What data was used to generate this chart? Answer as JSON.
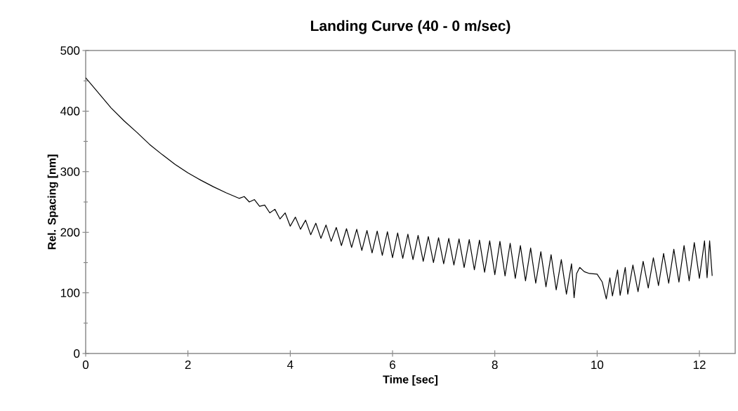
{
  "chart_data": {
    "type": "line",
    "title": "Landing Curve (40 - 0 m/sec)",
    "xlabel": "Time [sec]",
    "ylabel": "Rel. Spacing [nm]",
    "xlim": [
      0,
      12.7
    ],
    "ylim": [
      0,
      500
    ],
    "xticks": [
      0,
      2,
      4,
      6,
      8,
      10,
      12
    ],
    "yticks": [
      0,
      100,
      200,
      300,
      400,
      500
    ],
    "grid": false,
    "marker": "none",
    "line_style": "solid",
    "series": [
      {
        "color": "#000000",
        "x": [
          0,
          0.25,
          0.5,
          0.75,
          1,
          1.25,
          1.5,
          1.75,
          2,
          2.25,
          2.5,
          2.75,
          3,
          3.1,
          3.2,
          3.3,
          3.4,
          3.5,
          3.6,
          3.7,
          3.8,
          3.9,
          4.0,
          4.1,
          4.2,
          4.3,
          4.4,
          4.5,
          4.6,
          4.7,
          4.8,
          4.9,
          5.0,
          5.1,
          5.2,
          5.3,
          5.4,
          5.5,
          5.6,
          5.7,
          5.8,
          5.9,
          6.0,
          6.1,
          6.2,
          6.3,
          6.4,
          6.5,
          6.6,
          6.7,
          6.8,
          6.9,
          7.0,
          7.1,
          7.2,
          7.3,
          7.4,
          7.5,
          7.6,
          7.7,
          7.8,
          7.9,
          8.0,
          8.1,
          8.2,
          8.3,
          8.4,
          8.5,
          8.6,
          8.7,
          8.8,
          8.9,
          9.0,
          9.1,
          9.2,
          9.3,
          9.4,
          9.5,
          9.55,
          9.6,
          9.66,
          9.75,
          9.85,
          10.0,
          10.1,
          10.18,
          10.25,
          10.3,
          10.4,
          10.45,
          10.55,
          10.6,
          10.7,
          10.8,
          10.9,
          11.0,
          11.1,
          11.2,
          11.3,
          11.4,
          11.5,
          11.6,
          11.7,
          11.8,
          11.9,
          12.0,
          12.1,
          12.15,
          12.2,
          12.25
        ],
        "values": [
          455,
          430,
          405,
          384,
          365,
          345,
          328,
          312,
          298,
          286,
          275,
          265,
          256,
          259,
          250,
          254,
          243,
          245,
          232,
          238,
          222,
          232,
          210,
          225,
          205,
          220,
          196,
          215,
          190,
          212,
          185,
          208,
          178,
          206,
          175,
          205,
          170,
          203,
          166,
          202,
          162,
          201,
          158,
          199,
          157,
          197,
          155,
          195,
          152,
          193,
          150,
          191,
          148,
          190,
          146,
          189,
          142,
          188,
          138,
          187,
          134,
          186,
          130,
          185,
          128,
          182,
          124,
          178,
          120,
          174,
          116,
          168,
          110,
          163,
          105,
          155,
          98,
          148,
          92,
          132,
          142,
          135,
          132,
          131,
          118,
          90,
          125,
          95,
          138,
          96,
          142,
          98,
          146,
          102,
          152,
          108,
          158,
          112,
          165,
          116,
          172,
          118,
          178,
          120,
          183,
          124,
          186,
          125,
          186,
          128
        ]
      }
    ]
  }
}
